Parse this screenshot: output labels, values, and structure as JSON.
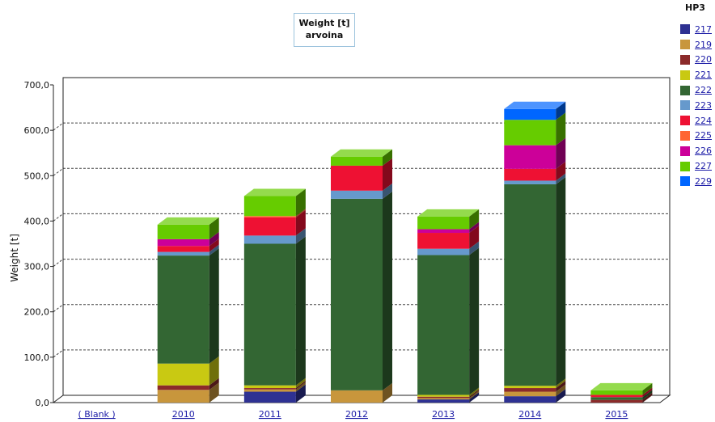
{
  "chart_data": {
    "type": "bar",
    "stacked": true,
    "title": "Weight [t]",
    "subtitle": "arvoina",
    "ylabel": "Weight [t]",
    "ylim": [
      0,
      700
    ],
    "yticks": [
      "0,0",
      "100,0",
      "200,0",
      "300,0",
      "400,0",
      "500,0",
      "600,0",
      "700,0"
    ],
    "grid": true,
    "legend_title": "HP3",
    "legend_position": "right",
    "categories": [
      "( Blank )",
      "2010",
      "2011",
      "2012",
      "2013",
      "2014",
      "2015"
    ],
    "series": [
      {
        "name": "217",
        "color": "#2e3192",
        "values": [
          0,
          0,
          24,
          0,
          7,
          14,
          0
        ]
      },
      {
        "name": "219",
        "color": "#c8963c",
        "values": [
          0,
          28,
          5,
          27,
          3,
          10,
          0
        ]
      },
      {
        "name": "220",
        "color": "#8b2a2a",
        "values": [
          0,
          10,
          3,
          0,
          3,
          8,
          6
        ]
      },
      {
        "name": "221",
        "color": "#c9c912",
        "values": [
          0,
          48,
          6,
          0,
          4,
          5,
          0
        ]
      },
      {
        "name": "222",
        "color": "#336633",
        "values": [
          0,
          238,
          312,
          422,
          308,
          444,
          6
        ]
      },
      {
        "name": "223",
        "color": "#6699cc",
        "values": [
          0,
          8,
          18,
          18,
          14,
          8,
          0
        ]
      },
      {
        "name": "224",
        "color": "#ee1133",
        "values": [
          0,
          13,
          40,
          55,
          35,
          26,
          5
        ]
      },
      {
        "name": "225",
        "color": "#ff6633",
        "values": [
          0,
          0,
          3,
          0,
          0,
          0,
          0
        ]
      },
      {
        "name": "226",
        "color": "#cc0099",
        "values": [
          0,
          15,
          0,
          0,
          8,
          52,
          0
        ]
      },
      {
        "name": "227",
        "color": "#66cc00",
        "values": [
          0,
          32,
          44,
          20,
          28,
          56,
          10
        ]
      },
      {
        "name": "229",
        "color": "#0066ff",
        "values": [
          0,
          0,
          0,
          0,
          0,
          24,
          0
        ]
      }
    ]
  }
}
